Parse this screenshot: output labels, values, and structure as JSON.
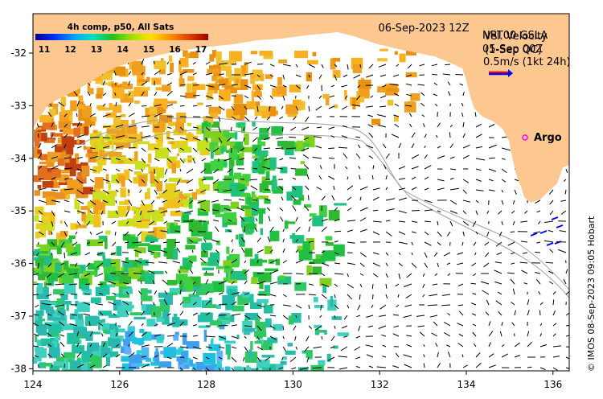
{
  "map": {
    "date_label": "06-Sep-2023 12Z",
    "colorbar_title": "4h comp, p50, All Sats",
    "colorbar_ticks": [
      "11",
      "12",
      "13",
      "14",
      "15",
      "16",
      "17"
    ],
    "colorbar_colors": [
      "#00008f",
      "#0030ff",
      "#00a0ff",
      "#00e0c0",
      "#20c020",
      "#a0e000",
      "#ffe000",
      "#ff9000",
      "#e04000",
      "#a00000"
    ],
    "legend_line1": "NRT00 GSLA",
    "legend_line1b": "05-Sep 00Z",
    "legend_line2": "Vel. Velocity",
    "legend_line2b": "(1-Sep QC)",
    "legend_scale": "0.5m/s (1kt 24h)",
    "argo_label": "Argo",
    "credit": "© IMOS 08-Sep-2023 09:05 Hobart",
    "land_color": "#fdc790",
    "x_ticks": [
      "124",
      "126",
      "128",
      "130",
      "132",
      "134",
      "136"
    ],
    "y_ticks": [
      "-32",
      "-33",
      "-34",
      "-35",
      "-36",
      "-37",
      "-38"
    ]
  }
}
